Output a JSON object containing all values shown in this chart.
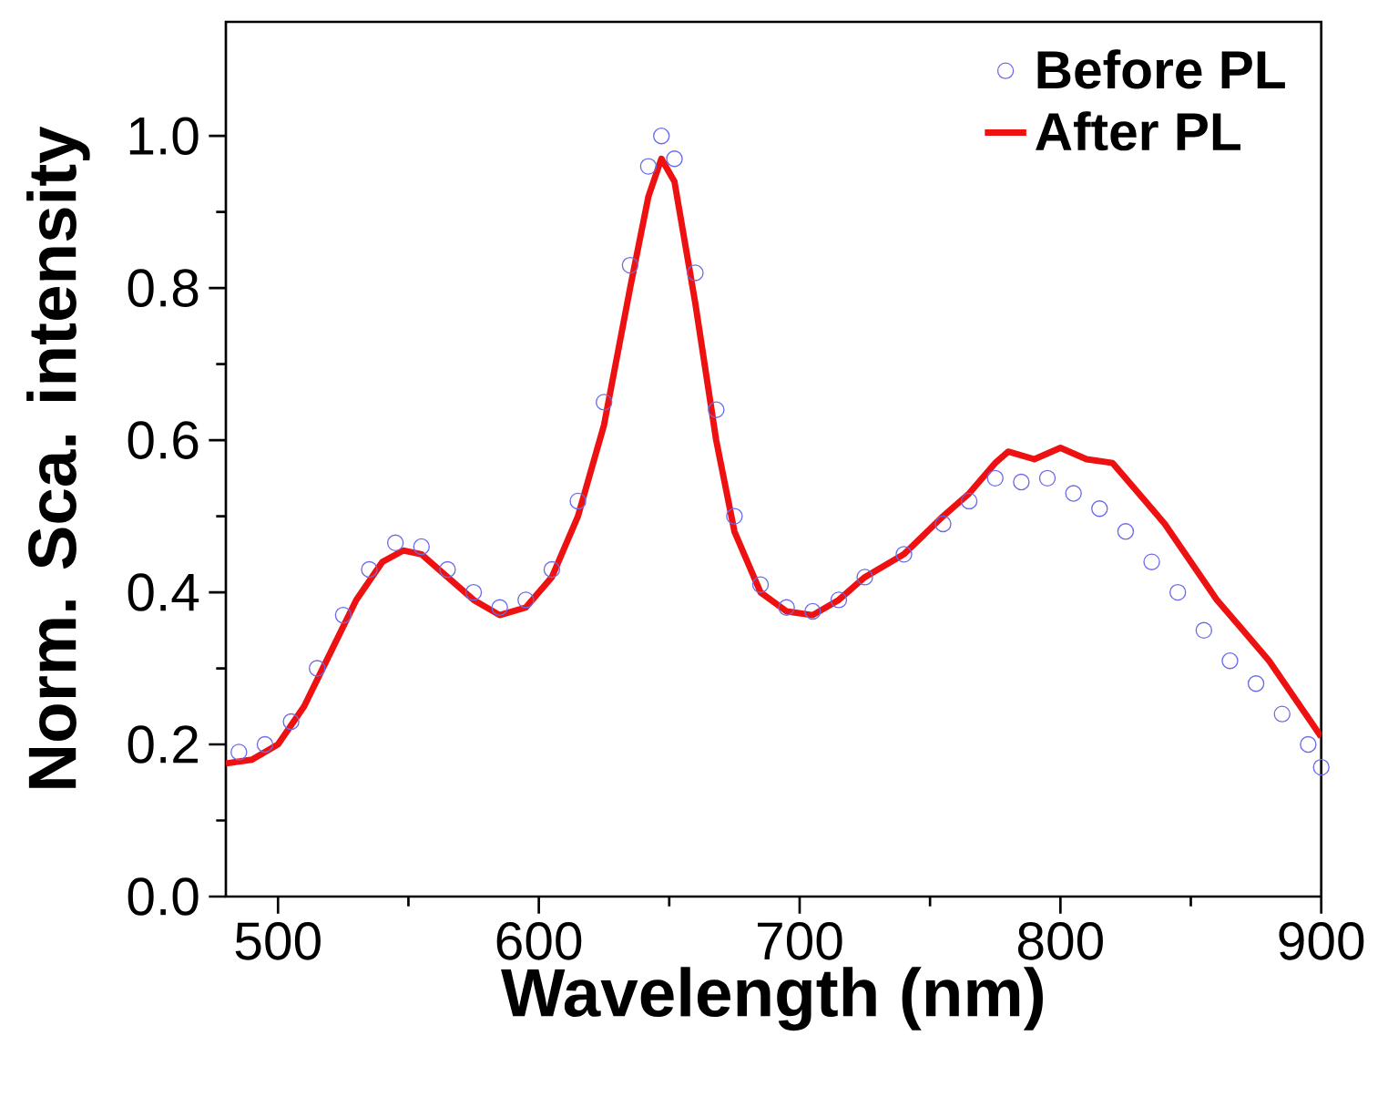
{
  "chart_data": {
    "type": "line",
    "xlabel": "Wavelength (nm)",
    "ylabel": "Norm. Sca. intensity",
    "xlim": [
      480,
      900
    ],
    "ylim": [
      0,
      1.15
    ],
    "xticks": [
      500,
      600,
      700,
      800,
      900
    ],
    "yticks": [
      {
        "value": 0,
        "label": "0.0"
      },
      0.2,
      0.4,
      0.6,
      0.8,
      {
        "value": 1,
        "label": "1.0"
      }
    ],
    "legend": "top right",
    "grid": false,
    "series": [
      {
        "name": "Before PL",
        "type": "scatter",
        "marker": "circle",
        "color": "#6b6be8",
        "x": [
          485,
          495,
          505,
          515,
          525,
          535,
          545,
          555,
          565,
          575,
          585,
          595,
          605,
          615,
          625,
          635,
          642,
          647,
          652,
          660,
          668,
          675,
          685,
          695,
          705,
          715,
          725,
          740,
          755,
          765,
          775,
          785,
          795,
          805,
          815,
          825,
          835,
          845,
          855,
          865,
          875,
          885,
          895,
          900
        ],
        "values": [
          0.19,
          0.2,
          0.23,
          0.3,
          0.37,
          0.43,
          0.465,
          0.46,
          0.43,
          0.4,
          0.38,
          0.39,
          0.43,
          0.52,
          0.65,
          0.83,
          0.96,
          1.0,
          0.97,
          0.82,
          0.64,
          0.5,
          0.41,
          0.38,
          0.375,
          0.39,
          0.42,
          0.45,
          0.49,
          0.52,
          0.55,
          0.545,
          0.55,
          0.53,
          0.51,
          0.48,
          0.44,
          0.4,
          0.35,
          0.31,
          0.28,
          0.24,
          0.2,
          0.17
        ]
      },
      {
        "name": "After PL",
        "color": "#ee1111",
        "x": [
          480,
          490,
          500,
          510,
          520,
          530,
          540,
          548,
          555,
          565,
          575,
          585,
          595,
          605,
          615,
          625,
          635,
          642,
          647,
          652,
          660,
          668,
          675,
          685,
          695,
          705,
          715,
          725,
          740,
          755,
          765,
          775,
          780,
          790,
          800,
          810,
          820,
          830,
          840,
          850,
          860,
          870,
          880,
          890,
          900
        ],
        "values": [
          0.175,
          0.18,
          0.2,
          0.25,
          0.32,
          0.39,
          0.44,
          0.455,
          0.45,
          0.42,
          0.39,
          0.37,
          0.38,
          0.42,
          0.5,
          0.62,
          0.8,
          0.92,
          0.97,
          0.94,
          0.78,
          0.6,
          0.48,
          0.4,
          0.375,
          0.37,
          0.39,
          0.42,
          0.45,
          0.5,
          0.53,
          0.57,
          0.585,
          0.575,
          0.59,
          0.575,
          0.57,
          0.53,
          0.49,
          0.44,
          0.39,
          0.35,
          0.31,
          0.26,
          0.21
        ]
      }
    ]
  }
}
